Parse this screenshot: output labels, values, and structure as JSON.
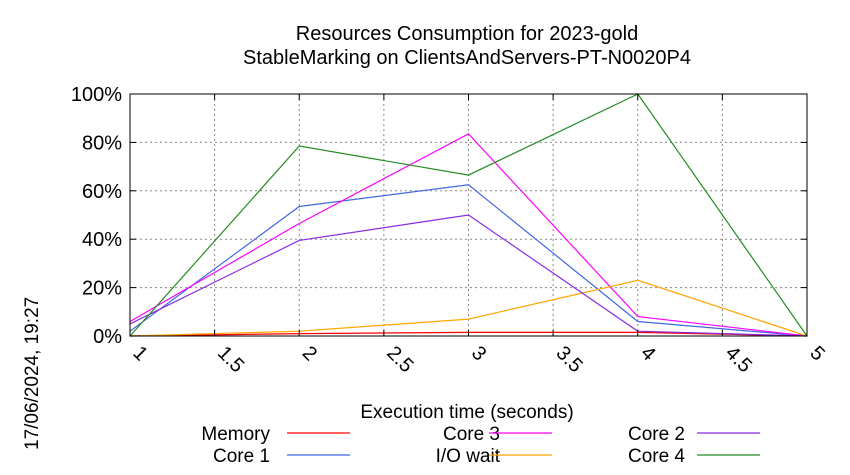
{
  "chart_data": {
    "type": "line",
    "title": "Resources Consumption for 2023-gold",
    "subtitle": "StableMarking on ClientsAndServers-PT-N0020P4",
    "xlabel": "Execution time (seconds)",
    "ylabel": "",
    "side_label": "17/06/2024, 19:27",
    "xlim": [
      1,
      5
    ],
    "ylim": [
      0,
      100
    ],
    "x_ticks": [
      "1",
      "1.5",
      "2",
      "2.5",
      "3",
      "3.5",
      "4",
      "4.5",
      "5"
    ],
    "y_ticks": [
      "0%",
      "20%",
      "40%",
      "60%",
      "80%",
      "100%"
    ],
    "grid": true,
    "legend_position": "bottom",
    "x": [
      1,
      2,
      3,
      4,
      5
    ],
    "series": [
      {
        "name": "Memory",
        "color": "#ff0000",
        "values": [
          0,
          1,
          1.5,
          1.5,
          0
        ]
      },
      {
        "name": "Core 1",
        "color": "#4169e1",
        "values": [
          2,
          53.5,
          62.5,
          6,
          0
        ]
      },
      {
        "name": "Core 3",
        "color": "#ff00ff",
        "values": [
          6,
          46.5,
          83.5,
          8,
          0
        ]
      },
      {
        "name": "I/O wait",
        "color": "#ffa500",
        "values": [
          0,
          2,
          7,
          23,
          0
        ]
      },
      {
        "name": "Core 2",
        "color": "#8a2be2",
        "values": [
          5,
          39.5,
          50,
          2,
          0
        ]
      },
      {
        "name": "Core 4",
        "color": "#228b22",
        "values": [
          0,
          78.5,
          66.5,
          100,
          0
        ]
      }
    ]
  }
}
